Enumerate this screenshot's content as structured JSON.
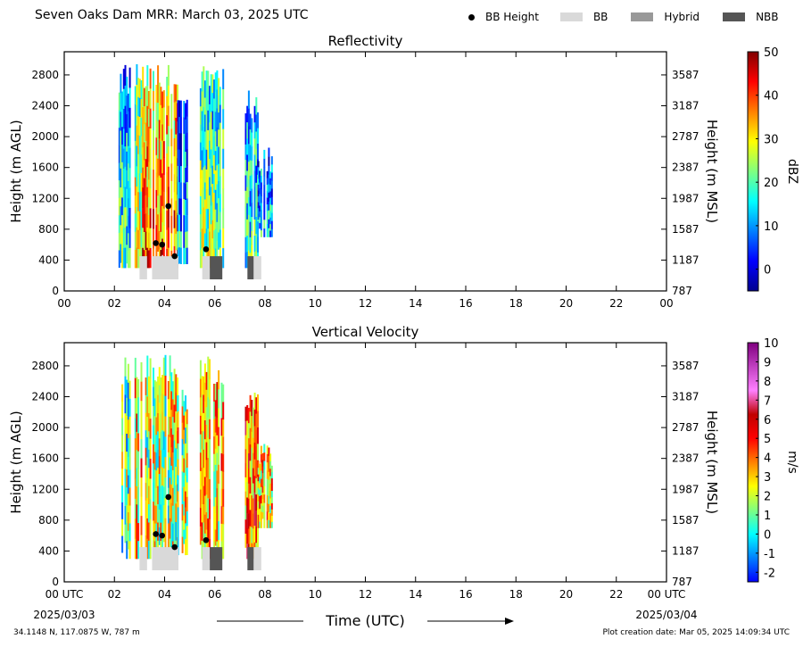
{
  "header": {
    "title": "Seven Oaks Dam MRR:  March 03, 2025 UTC",
    "legend": [
      {
        "label": "BB Height",
        "kind": "dot",
        "color": "#000000"
      },
      {
        "label": "BB",
        "kind": "swatch",
        "color": "#d9d9d9"
      },
      {
        "label": "Hybrid",
        "kind": "swatch",
        "color": "#999999"
      },
      {
        "label": "NBB",
        "kind": "swatch",
        "color": "#555555"
      }
    ]
  },
  "footer": {
    "location": "34.1148 N, 117.0875 W, 787 m",
    "created": "Plot creation date: Mar 05, 2025 14:09:34 UTC"
  },
  "chart_data": [
    {
      "type": "heatmap",
      "title": "Reflectivity",
      "xlabel": "",
      "ylabel": "Height (m AGL)",
      "y2label": "Height (m MSL)",
      "xlim": [
        0,
        24
      ],
      "ylim": [
        0,
        3100
      ],
      "x_ticks": [
        "00",
        "02",
        "04",
        "06",
        "08",
        "10",
        "12",
        "14",
        "16",
        "18",
        "20",
        "22",
        "00"
      ],
      "y_ticks": [
        0,
        400,
        800,
        1200,
        1600,
        2000,
        2400,
        2800
      ],
      "y2_ticks": [
        787,
        1187,
        1587,
        1987,
        2387,
        2787,
        3187,
        3587
      ],
      "colorbar": {
        "label": "dBZ",
        "ticks": [
          "50",
          "40",
          "30",
          "20",
          "10",
          "0"
        ],
        "min": -5,
        "max": 50,
        "stops": [
          "#00008f",
          "#0000ff",
          "#0080ff",
          "#00ffff",
          "#80ff80",
          "#ffff00",
          "#ff8000",
          "#ff0000",
          "#800000"
        ]
      },
      "bb_height_points": [
        {
          "time": 4.15,
          "height": 1100
        },
        {
          "time": 3.65,
          "height": 620
        },
        {
          "time": 3.9,
          "height": 600
        },
        {
          "time": 4.4,
          "height": 450
        },
        {
          "time": 5.65,
          "height": 540
        }
      ],
      "bb_type_bars": [
        {
          "type": "BB",
          "start": 3.0,
          "end": 3.3
        },
        {
          "type": "BB",
          "start": 3.5,
          "end": 4.55
        },
        {
          "type": "BB",
          "start": 5.5,
          "end": 5.8
        },
        {
          "type": "NBB",
          "start": 5.8,
          "end": 6.3
        },
        {
          "type": "NBB",
          "start": 7.3,
          "end": 7.55
        },
        {
          "type": "BB",
          "start": 7.55,
          "end": 7.85
        }
      ],
      "echo_segments": [
        {
          "start": 2.1,
          "end": 2.6,
          "top": 2950,
          "bottom": 300,
          "mean": 15
        },
        {
          "start": 2.8,
          "end": 3.1,
          "top": 2950,
          "bottom": 300,
          "mean": 25
        },
        {
          "start": 3.1,
          "end": 4.5,
          "top": 2950,
          "bottom": 300,
          "mean": 35
        },
        {
          "start": 4.5,
          "end": 4.9,
          "top": 2500,
          "bottom": 350,
          "mean": 10
        },
        {
          "start": 5.4,
          "end": 6.3,
          "top": 2950,
          "bottom": 300,
          "mean": 20
        },
        {
          "start": 7.2,
          "end": 7.7,
          "top": 2600,
          "bottom": 300,
          "mean": 15
        },
        {
          "start": 7.7,
          "end": 8.3,
          "top": 1900,
          "bottom": 700,
          "mean": 10
        }
      ]
    },
    {
      "type": "heatmap",
      "title": "Vertical Velocity",
      "xlabel": "Time (UTC)",
      "ylabel": "Height (m AGL)",
      "y2label": "Height (m MSL)",
      "xlim": [
        0,
        24
      ],
      "ylim": [
        0,
        3100
      ],
      "x_ticks": [
        "00 UTC",
        "02",
        "04",
        "06",
        "08",
        "10",
        "12",
        "14",
        "16",
        "18",
        "20",
        "22",
        "00 UTC"
      ],
      "x_date_start": "2025/03/03",
      "x_date_end": "2025/03/04",
      "y_ticks": [
        0,
        400,
        800,
        1200,
        1600,
        2000,
        2400,
        2800
      ],
      "y2_ticks": [
        787,
        1187,
        1587,
        1987,
        2387,
        2787,
        3187,
        3587
      ],
      "colorbar": {
        "label": "m/s",
        "ticks": [
          "10",
          "9",
          "8",
          "7",
          "6",
          "5",
          "4",
          "3",
          "2",
          "1",
          "0",
          "-1",
          "-2"
        ],
        "min": -2.5,
        "max": 10,
        "stops": [
          "#0000ff",
          "#0080ff",
          "#00ffff",
          "#80ff80",
          "#ffff00",
          "#ff8000",
          "#ff0000",
          "#c00000",
          "#ff80ff",
          "#c040c0",
          "#800080"
        ]
      },
      "bb_height_points": [
        {
          "time": 4.15,
          "height": 1100
        },
        {
          "time": 3.65,
          "height": 620
        },
        {
          "time": 3.9,
          "height": 600
        },
        {
          "time": 4.4,
          "height": 450
        },
        {
          "time": 5.65,
          "height": 540
        }
      ],
      "bb_type_bars": [
        {
          "type": "BB",
          "start": 3.0,
          "end": 3.3
        },
        {
          "type": "BB",
          "start": 3.5,
          "end": 4.55
        },
        {
          "type": "BB",
          "start": 5.5,
          "end": 5.8
        },
        {
          "type": "NBB",
          "start": 5.8,
          "end": 6.3
        },
        {
          "type": "NBB",
          "start": 7.3,
          "end": 7.55
        },
        {
          "type": "BB",
          "start": 7.55,
          "end": 7.85
        }
      ],
      "echo_segments": [
        {
          "start": 2.1,
          "end": 2.6,
          "top": 2950,
          "bottom": 300,
          "mean": 1
        },
        {
          "start": 2.8,
          "end": 3.1,
          "top": 2950,
          "bottom": 300,
          "mean": 3
        },
        {
          "start": 3.1,
          "end": 4.5,
          "top": 2950,
          "bottom": 300,
          "mean": 2
        },
        {
          "start": 4.5,
          "end": 4.9,
          "top": 2500,
          "bottom": 350,
          "mean": 2
        },
        {
          "start": 5.4,
          "end": 6.3,
          "top": 2950,
          "bottom": 300,
          "mean": 3
        },
        {
          "start": 7.2,
          "end": 7.7,
          "top": 2600,
          "bottom": 300,
          "mean": 4
        },
        {
          "start": 7.7,
          "end": 8.3,
          "top": 1900,
          "bottom": 700,
          "mean": 3
        }
      ]
    }
  ]
}
